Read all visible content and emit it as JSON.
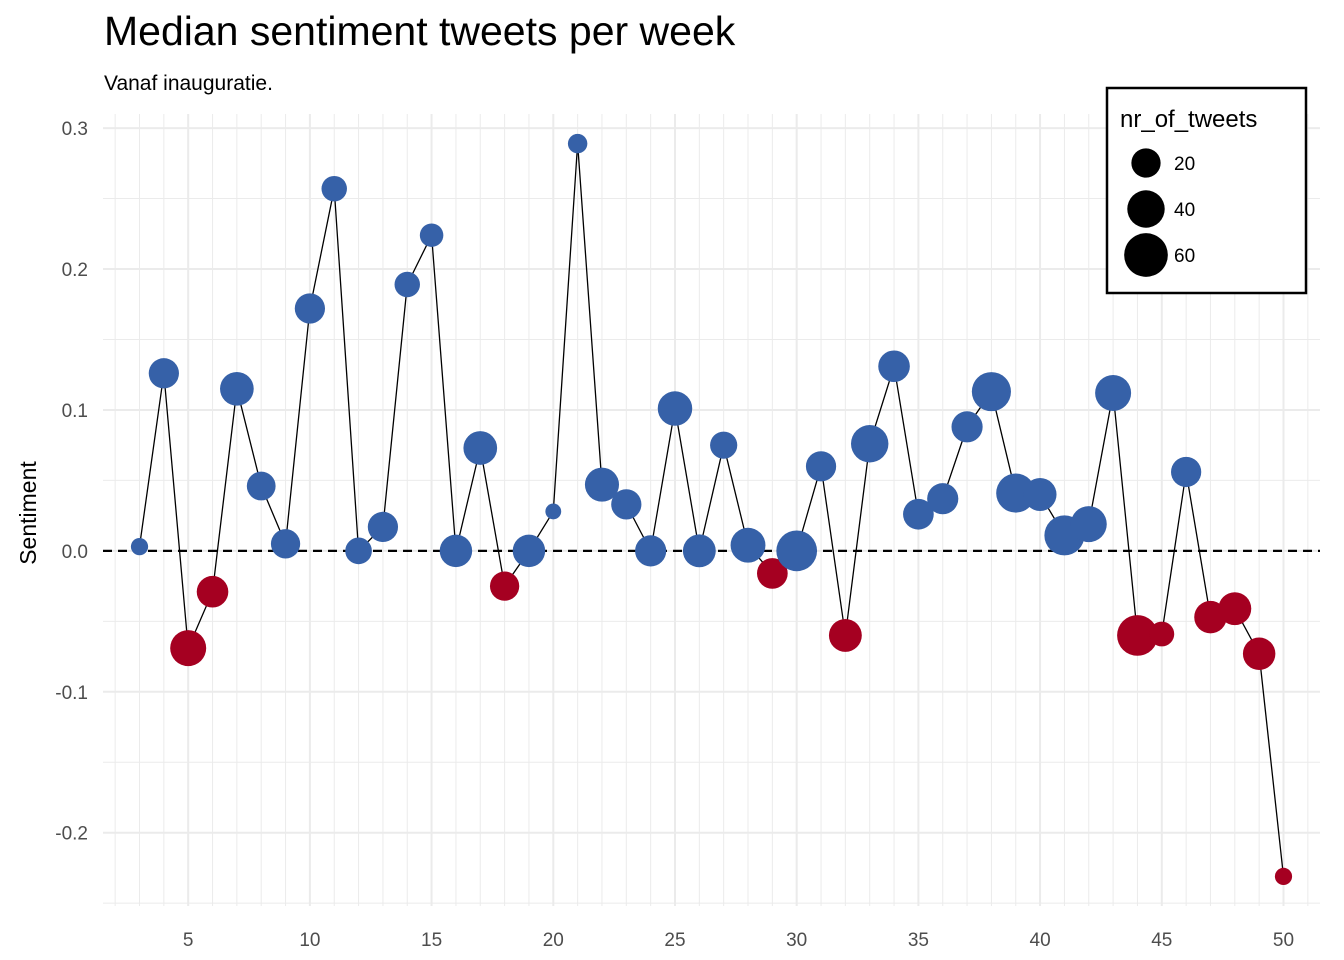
{
  "chart_data": {
    "type": "scatter",
    "title": "Median sentiment tweets per week",
    "subtitle": "Vanaf inauguratie.",
    "xlabel": "",
    "ylabel": "Sentiment",
    "xlim": [
      1.5,
      51.5
    ],
    "ylim": [
      -0.252,
      0.31
    ],
    "x_ticks": [
      5,
      10,
      15,
      20,
      25,
      30,
      35,
      40,
      45,
      50
    ],
    "x_tick_labels": [
      "5",
      "10",
      "15",
      "20",
      "25",
      "30",
      "35",
      "40",
      "45",
      "50"
    ],
    "y_ticks": [
      -0.2,
      -0.1,
      0.0,
      0.1,
      0.2,
      0.3
    ],
    "y_tick_labels": [
      "-0.2",
      "-0.1",
      "0.0",
      "0.1",
      "0.2",
      "0.3"
    ],
    "grid": true,
    "reference_line": {
      "y": 0,
      "style": "dashed"
    },
    "colors": {
      "positive": "#3661A8",
      "negative": "#A50021",
      "line": "#000000",
      "grid": "#EBEBEB"
    },
    "legend": {
      "title": "nr_of_tweets",
      "placement": "top-right",
      "entries": [
        {
          "label": "20",
          "value": 20
        },
        {
          "label": "40",
          "value": 40
        },
        {
          "label": "60",
          "value": 60
        }
      ]
    },
    "points": [
      {
        "x": 3,
        "y": 0.003,
        "n": 3
      },
      {
        "x": 4,
        "y": 0.126,
        "n": 22
      },
      {
        "x": 5,
        "y": -0.069,
        "n": 36
      },
      {
        "x": 6,
        "y": -0.029,
        "n": 25
      },
      {
        "x": 7,
        "y": 0.115,
        "n": 30
      },
      {
        "x": 8,
        "y": 0.046,
        "n": 19
      },
      {
        "x": 9,
        "y": 0.005,
        "n": 20
      },
      {
        "x": 10,
        "y": 0.172,
        "n": 22
      },
      {
        "x": 11,
        "y": 0.257,
        "n": 13
      },
      {
        "x": 12,
        "y": 0.0,
        "n": 15
      },
      {
        "x": 13,
        "y": 0.017,
        "n": 22
      },
      {
        "x": 14,
        "y": 0.189,
        "n": 13
      },
      {
        "x": 15,
        "y": 0.224,
        "n": 10
      },
      {
        "x": 16,
        "y": 0.0,
        "n": 27
      },
      {
        "x": 17,
        "y": 0.073,
        "n": 30
      },
      {
        "x": 18,
        "y": -0.025,
        "n": 20
      },
      {
        "x": 19,
        "y": 0.0,
        "n": 27
      },
      {
        "x": 20,
        "y": 0.028,
        "n": 2
      },
      {
        "x": 21,
        "y": 0.289,
        "n": 5
      },
      {
        "x": 22,
        "y": 0.047,
        "n": 31
      },
      {
        "x": 23,
        "y": 0.033,
        "n": 22
      },
      {
        "x": 24,
        "y": 0.0,
        "n": 24
      },
      {
        "x": 25,
        "y": 0.101,
        "n": 32
      },
      {
        "x": 26,
        "y": 0.0,
        "n": 28
      },
      {
        "x": 27,
        "y": 0.075,
        "n": 16
      },
      {
        "x": 28,
        "y": 0.004,
        "n": 33
      },
      {
        "x": 29,
        "y": -0.016,
        "n": 23
      },
      {
        "x": 30,
        "y": 0.0,
        "n": 50
      },
      {
        "x": 31,
        "y": 0.06,
        "n": 22
      },
      {
        "x": 32,
        "y": -0.06,
        "n": 28
      },
      {
        "x": 33,
        "y": 0.076,
        "n": 40
      },
      {
        "x": 34,
        "y": 0.131,
        "n": 25
      },
      {
        "x": 35,
        "y": 0.026,
        "n": 23
      },
      {
        "x": 36,
        "y": 0.037,
        "n": 24
      },
      {
        "x": 37,
        "y": 0.088,
        "n": 24
      },
      {
        "x": 38,
        "y": 0.113,
        "n": 45
      },
      {
        "x": 39,
        "y": 0.041,
        "n": 45
      },
      {
        "x": 40,
        "y": 0.04,
        "n": 28
      },
      {
        "x": 41,
        "y": 0.011,
        "n": 48
      },
      {
        "x": 42,
        "y": 0.019,
        "n": 36
      },
      {
        "x": 43,
        "y": 0.112,
        "n": 36
      },
      {
        "x": 44,
        "y": -0.06,
        "n": 50
      },
      {
        "x": 45,
        "y": -0.059,
        "n": 12
      },
      {
        "x": 46,
        "y": 0.056,
        "n": 22
      },
      {
        "x": 47,
        "y": -0.047,
        "n": 27
      },
      {
        "x": 48,
        "y": -0.041,
        "n": 28
      },
      {
        "x": 49,
        "y": -0.073,
        "n": 27
      },
      {
        "x": 50,
        "y": -0.231,
        "n": 3
      }
    ]
  }
}
